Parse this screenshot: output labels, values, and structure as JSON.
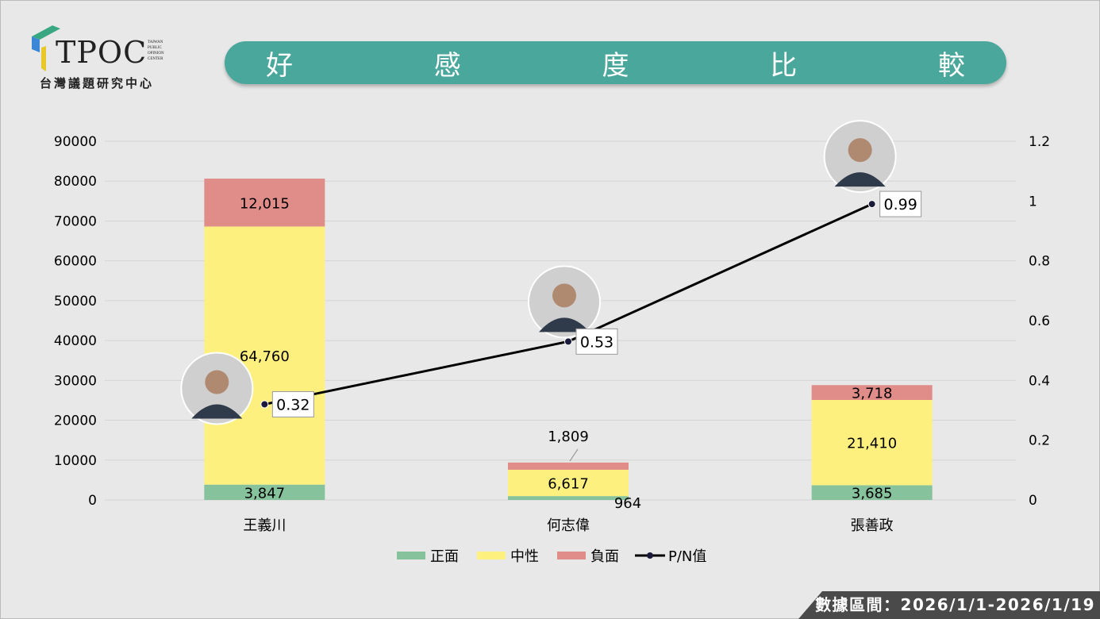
{
  "logo": {
    "name": "TPOC",
    "subtitle": "台灣議題研究中心",
    "badge": [
      "TAIWAN",
      "PUBLIC",
      "OPINION",
      "CENTER"
    ]
  },
  "title": [
    "好",
    "感",
    "度",
    "比",
    "較"
  ],
  "footer": "數據區間：2026/1/1-2026/1/19",
  "colors": {
    "positive": "#86c29b",
    "neutral": "#fef07f",
    "negative": "#e08c88",
    "line": "#000000",
    "title_bg": "#4aa79c"
  },
  "chart_data": {
    "type": "bar",
    "stacked": true,
    "categories": [
      "王義川",
      "何志偉",
      "張善政"
    ],
    "series": [
      {
        "name": "正面",
        "values": [
          3847,
          964,
          3685
        ],
        "labels": [
          "3,847",
          "964",
          "3,685"
        ]
      },
      {
        "name": "中性",
        "values": [
          64760,
          6617,
          21410
        ],
        "labels": [
          "64,760",
          "6,617",
          "21,410"
        ]
      },
      {
        "name": "負面",
        "values": [
          12015,
          1809,
          3718
        ],
        "labels": [
          "12,015",
          "1,809",
          "3,718"
        ]
      }
    ],
    "line_series": {
      "name": "P/N值",
      "values": [
        0.32,
        0.53,
        0.99
      ],
      "labels": [
        "0.32",
        "0.53",
        "0.99"
      ],
      "axis": "right"
    },
    "ylim": [
      0,
      90000
    ],
    "yticks": [
      "0",
      "10000",
      "20000",
      "30000",
      "40000",
      "50000",
      "60000",
      "70000",
      "80000",
      "90000"
    ],
    "y2lim": [
      0,
      1.2
    ],
    "y2ticks": [
      "0",
      "0.2",
      "0.4",
      "0.6",
      "0.8",
      "1",
      "1.2"
    ],
    "grid": true,
    "legend": "bottom"
  }
}
